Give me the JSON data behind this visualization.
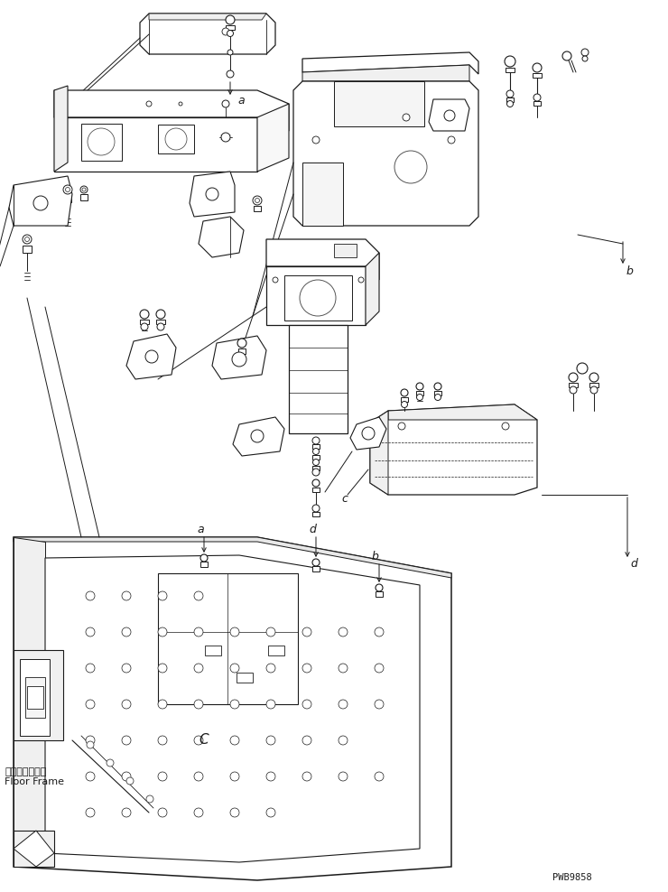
{
  "bg_color": "#ffffff",
  "line_color": "#1a1a1a",
  "fig_width": 7.4,
  "fig_height": 9.88,
  "dpi": 100,
  "watermark": "PWB9858",
  "label_floor_jp": "フロアフレーム",
  "label_floor_en": "Floor Frame"
}
